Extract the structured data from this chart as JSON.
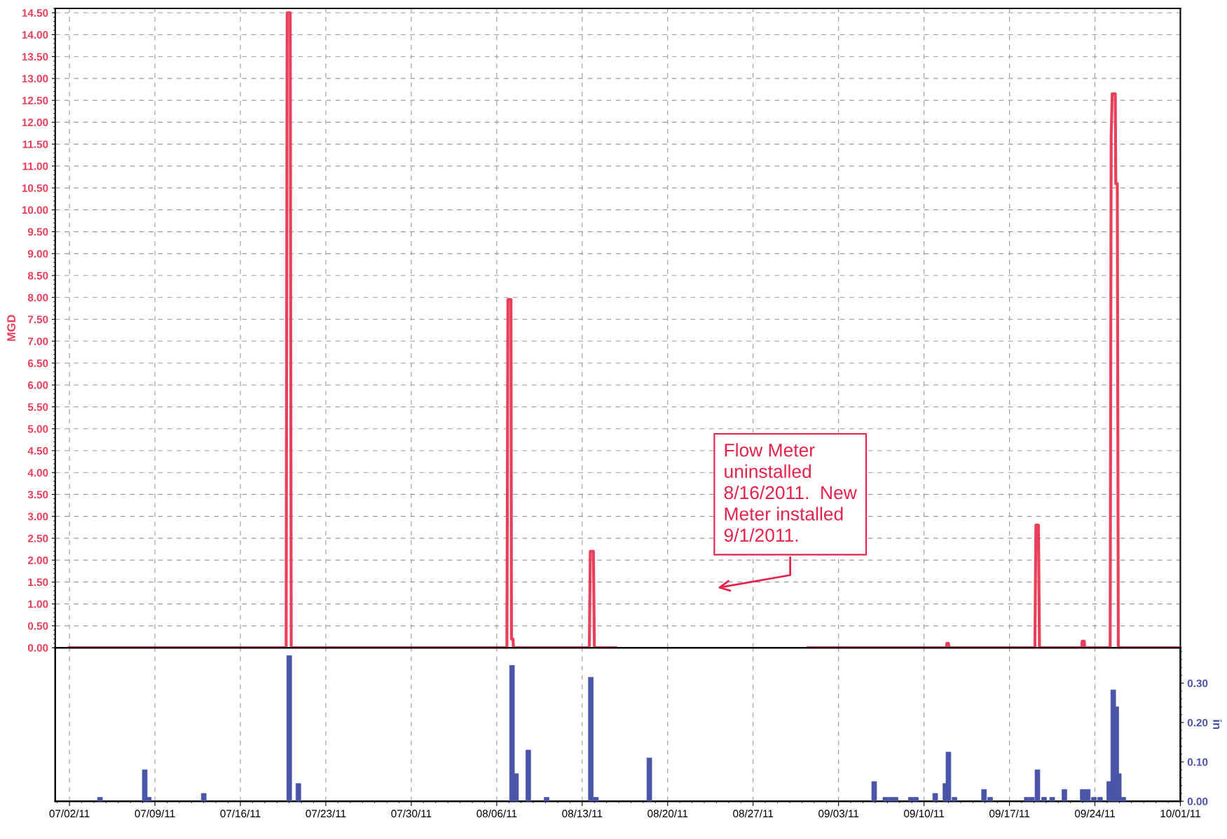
{
  "chart_data": [
    {
      "type": "line",
      "ylabel": "MGD",
      "xlim": [
        "2011-06-30T20:00",
        "2011-10-01T00:00"
      ],
      "xticks": [
        {
          "value": "2011-07-02",
          "label": null
        },
        {
          "value": "2011-07-09",
          "label": null
        },
        {
          "value": "2011-07-16",
          "label": null
        },
        {
          "value": "2011-07-23",
          "label": null
        },
        {
          "value": "2011-07-30",
          "label": null
        },
        {
          "value": "2011-08-06",
          "label": null
        },
        {
          "value": "2011-08-13",
          "label": null
        },
        {
          "value": "2011-08-20",
          "label": null
        },
        {
          "value": "2011-08-27",
          "label": null
        },
        {
          "value": "2011-09-03",
          "label": null
        },
        {
          "value": "2011-09-10",
          "label": null
        },
        {
          "value": "2011-09-17",
          "label": null
        },
        {
          "value": "2011-09-24",
          "label": null
        },
        {
          "value": "2011-10-01",
          "label": null
        }
      ],
      "ylim": [
        0,
        14.6
      ],
      "yticks": [
        {
          "value": 0,
          "label": "0.00"
        },
        {
          "value": 0.5,
          "label": "0.50"
        },
        {
          "value": 1,
          "label": "1.00"
        },
        {
          "value": 1.5,
          "label": "1.50"
        },
        {
          "value": 2,
          "label": "2.00"
        },
        {
          "value": 2.5,
          "label": "2.50"
        },
        {
          "value": 3,
          "label": "3.00"
        },
        {
          "value": 3.5,
          "label": "3.50"
        },
        {
          "value": 4,
          "label": "4.00"
        },
        {
          "value": 4.5,
          "label": "4.50"
        },
        {
          "value": 5,
          "label": "5.00"
        },
        {
          "value": 5.5,
          "label": "5.50"
        },
        {
          "value": 6,
          "label": "6.00"
        },
        {
          "value": 6.5,
          "label": "6.50"
        },
        {
          "value": 7,
          "label": "7.00"
        },
        {
          "value": 7.5,
          "label": "7.50"
        },
        {
          "value": 8,
          "label": "8.00"
        },
        {
          "value": 8.5,
          "label": "8.50"
        },
        {
          "value": 9,
          "label": "9.00"
        },
        {
          "value": 9.5,
          "label": "9.50"
        },
        {
          "value": 10,
          "label": "10.00"
        },
        {
          "value": 10.5,
          "label": "10.50"
        },
        {
          "value": 11,
          "label": "11.00"
        },
        {
          "value": 11.5,
          "label": "11.50"
        },
        {
          "value": 12,
          "label": "12.00"
        },
        {
          "value": 12.5,
          "label": "12.50"
        },
        {
          "value": 13,
          "label": "13.00"
        },
        {
          "value": 13.5,
          "label": "13.50"
        },
        {
          "value": 14,
          "label": "14.00"
        },
        {
          "value": 14.5,
          "label": "14.50"
        }
      ],
      "tick_labels": "y",
      "grid": true,
      "line_style": "solid",
      "marker": "none",
      "annotations": [
        "Flow Meter\nuninstalled\n8/16/2011.  New\nMeter installed\n9/1/2011."
      ],
      "series": [
        {
          "color": "#e8405a",
          "x": [
            "2011-07-02T00:00",
            "2011-07-19T18:00",
            "2011-07-19T20:00",
            "2011-07-20T02:00",
            "2011-07-20T04:00",
            "2011-08-06T20:00",
            "2011-08-06T22:00",
            "2011-08-07T04:00",
            "2011-08-07T05:00",
            "2011-08-07T08:00",
            "2011-08-07T09:00",
            "2011-08-13T14:00",
            "2011-08-13T16:00",
            "2011-08-13T22:00",
            "2011-08-14T00:00",
            "2011-08-15T18:00",
            "2011-08-24T00:00",
            "2011-08-31T12:00",
            "2011-09-11T20:00",
            "2011-09-11T21:00",
            "2011-09-12T00:00",
            "2011-09-12T01:00",
            "2011-09-19T02:00",
            "2011-09-19T04:00",
            "2011-09-19T09:00",
            "2011-09-19T11:00",
            "2011-09-22T22:00",
            "2011-09-22T23:00",
            "2011-09-23T03:00",
            "2011-09-23T04:00",
            "2011-09-25T06:00",
            "2011-09-25T08:00",
            "2011-09-25T10:00",
            "2011-09-25T16:00",
            "2011-09-25T17:00",
            "2011-09-25T20:00",
            "2011-09-25T22:00",
            "2011-10-01T00:00"
          ],
          "values": [
            0,
            0,
            14.5,
            14.5,
            0,
            0,
            7.95,
            7.95,
            0.2,
            0.2,
            0,
            0,
            2.2,
            2.2,
            0,
            0,
            null,
            0,
            0,
            0.1,
            0.1,
            0,
            0,
            2.8,
            2.8,
            0,
            0,
            0.15,
            0.15,
            0,
            0,
            11.7,
            12.65,
            12.65,
            10.6,
            10.6,
            0,
            0
          ]
        }
      ]
    },
    {
      "type": "bar",
      "y2label": "in",
      "xlim": [
        "2011-06-30T20:00",
        "2011-10-01T00:00"
      ],
      "xticks": [
        {
          "value": "2011-07-02",
          "label": "07/02/11"
        },
        {
          "value": "2011-07-09",
          "label": "07/09/11"
        },
        {
          "value": "2011-07-16",
          "label": "07/16/11"
        },
        {
          "value": "2011-07-23",
          "label": "07/23/11"
        },
        {
          "value": "2011-07-30",
          "label": "07/30/11"
        },
        {
          "value": "2011-08-06",
          "label": "08/06/11"
        },
        {
          "value": "2011-08-13",
          "label": "08/13/11"
        },
        {
          "value": "2011-08-20",
          "label": "08/20/11"
        },
        {
          "value": "2011-08-27",
          "label": "08/27/11"
        },
        {
          "value": "2011-09-03",
          "label": "09/03/11"
        },
        {
          "value": "2011-09-10",
          "label": "09/10/11"
        },
        {
          "value": "2011-09-17",
          "label": "09/17/11"
        },
        {
          "value": "2011-09-24",
          "label": "09/24/11"
        },
        {
          "value": "2011-10-01",
          "label": "10/01/11"
        }
      ],
      "y2lim": [
        0,
        0.39
      ],
      "y2ticks": [
        {
          "value": 0,
          "label": "0.00"
        },
        {
          "value": 0.1,
          "label": "0.10"
        },
        {
          "value": 0.2,
          "label": "0.20"
        },
        {
          "value": 0.3,
          "label": "0.30"
        }
      ],
      "grid": "x",
      "series": [
        {
          "color": "#4a55a8",
          "axis": "y2",
          "x": [
            "2011-07-04T12:00",
            "2011-07-08T04:00",
            "2011-07-08T12:00",
            "2011-07-13T00:00",
            "2011-07-20T00:00",
            "2011-07-20T18:00",
            "2011-08-07T06:00",
            "2011-08-07T14:00",
            "2011-08-08T14:00",
            "2011-08-10T02:00",
            "2011-08-13T17:00",
            "2011-08-14T03:00",
            "2011-08-18T12:00",
            "2011-09-05T22:00",
            "2011-09-06T20:00",
            "2011-09-07T06:00",
            "2011-09-07T16:00",
            "2011-09-08T22:00",
            "2011-09-09T08:00",
            "2011-09-10T22:00",
            "2011-09-11T18:00",
            "2011-09-12T00:00",
            "2011-09-12T12:00",
            "2011-09-14T22:00",
            "2011-09-15T10:00",
            "2011-09-18T10:00",
            "2011-09-18T20:00",
            "2011-09-19T07:00",
            "2011-09-19T20:00",
            "2011-09-20T12:00",
            "2011-09-21T12:00",
            "2011-09-23T00:00",
            "2011-09-23T10:00",
            "2011-09-23T22:00",
            "2011-09-24T10:00",
            "2011-09-25T04:00",
            "2011-09-25T12:00",
            "2011-09-25T18:00",
            "2011-09-25T23:00",
            "2011-09-26T08:00"
          ],
          "values": [
            0.01,
            0.08,
            0.01,
            0.02,
            0.37,
            0.045,
            0.345,
            0.07,
            0.13,
            0.01,
            0.315,
            0.01,
            0.11,
            0.05,
            0.01,
            0.01,
            0.01,
            0.01,
            0.01,
            0.02,
            0.045,
            0.125,
            0.01,
            0.03,
            0.01,
            0.01,
            0.01,
            0.08,
            0.01,
            0.01,
            0.03,
            0.03,
            0.03,
            0.01,
            0.01,
            0.05,
            0.283,
            0.24,
            0.07,
            0.01
          ]
        }
      ]
    }
  ]
}
